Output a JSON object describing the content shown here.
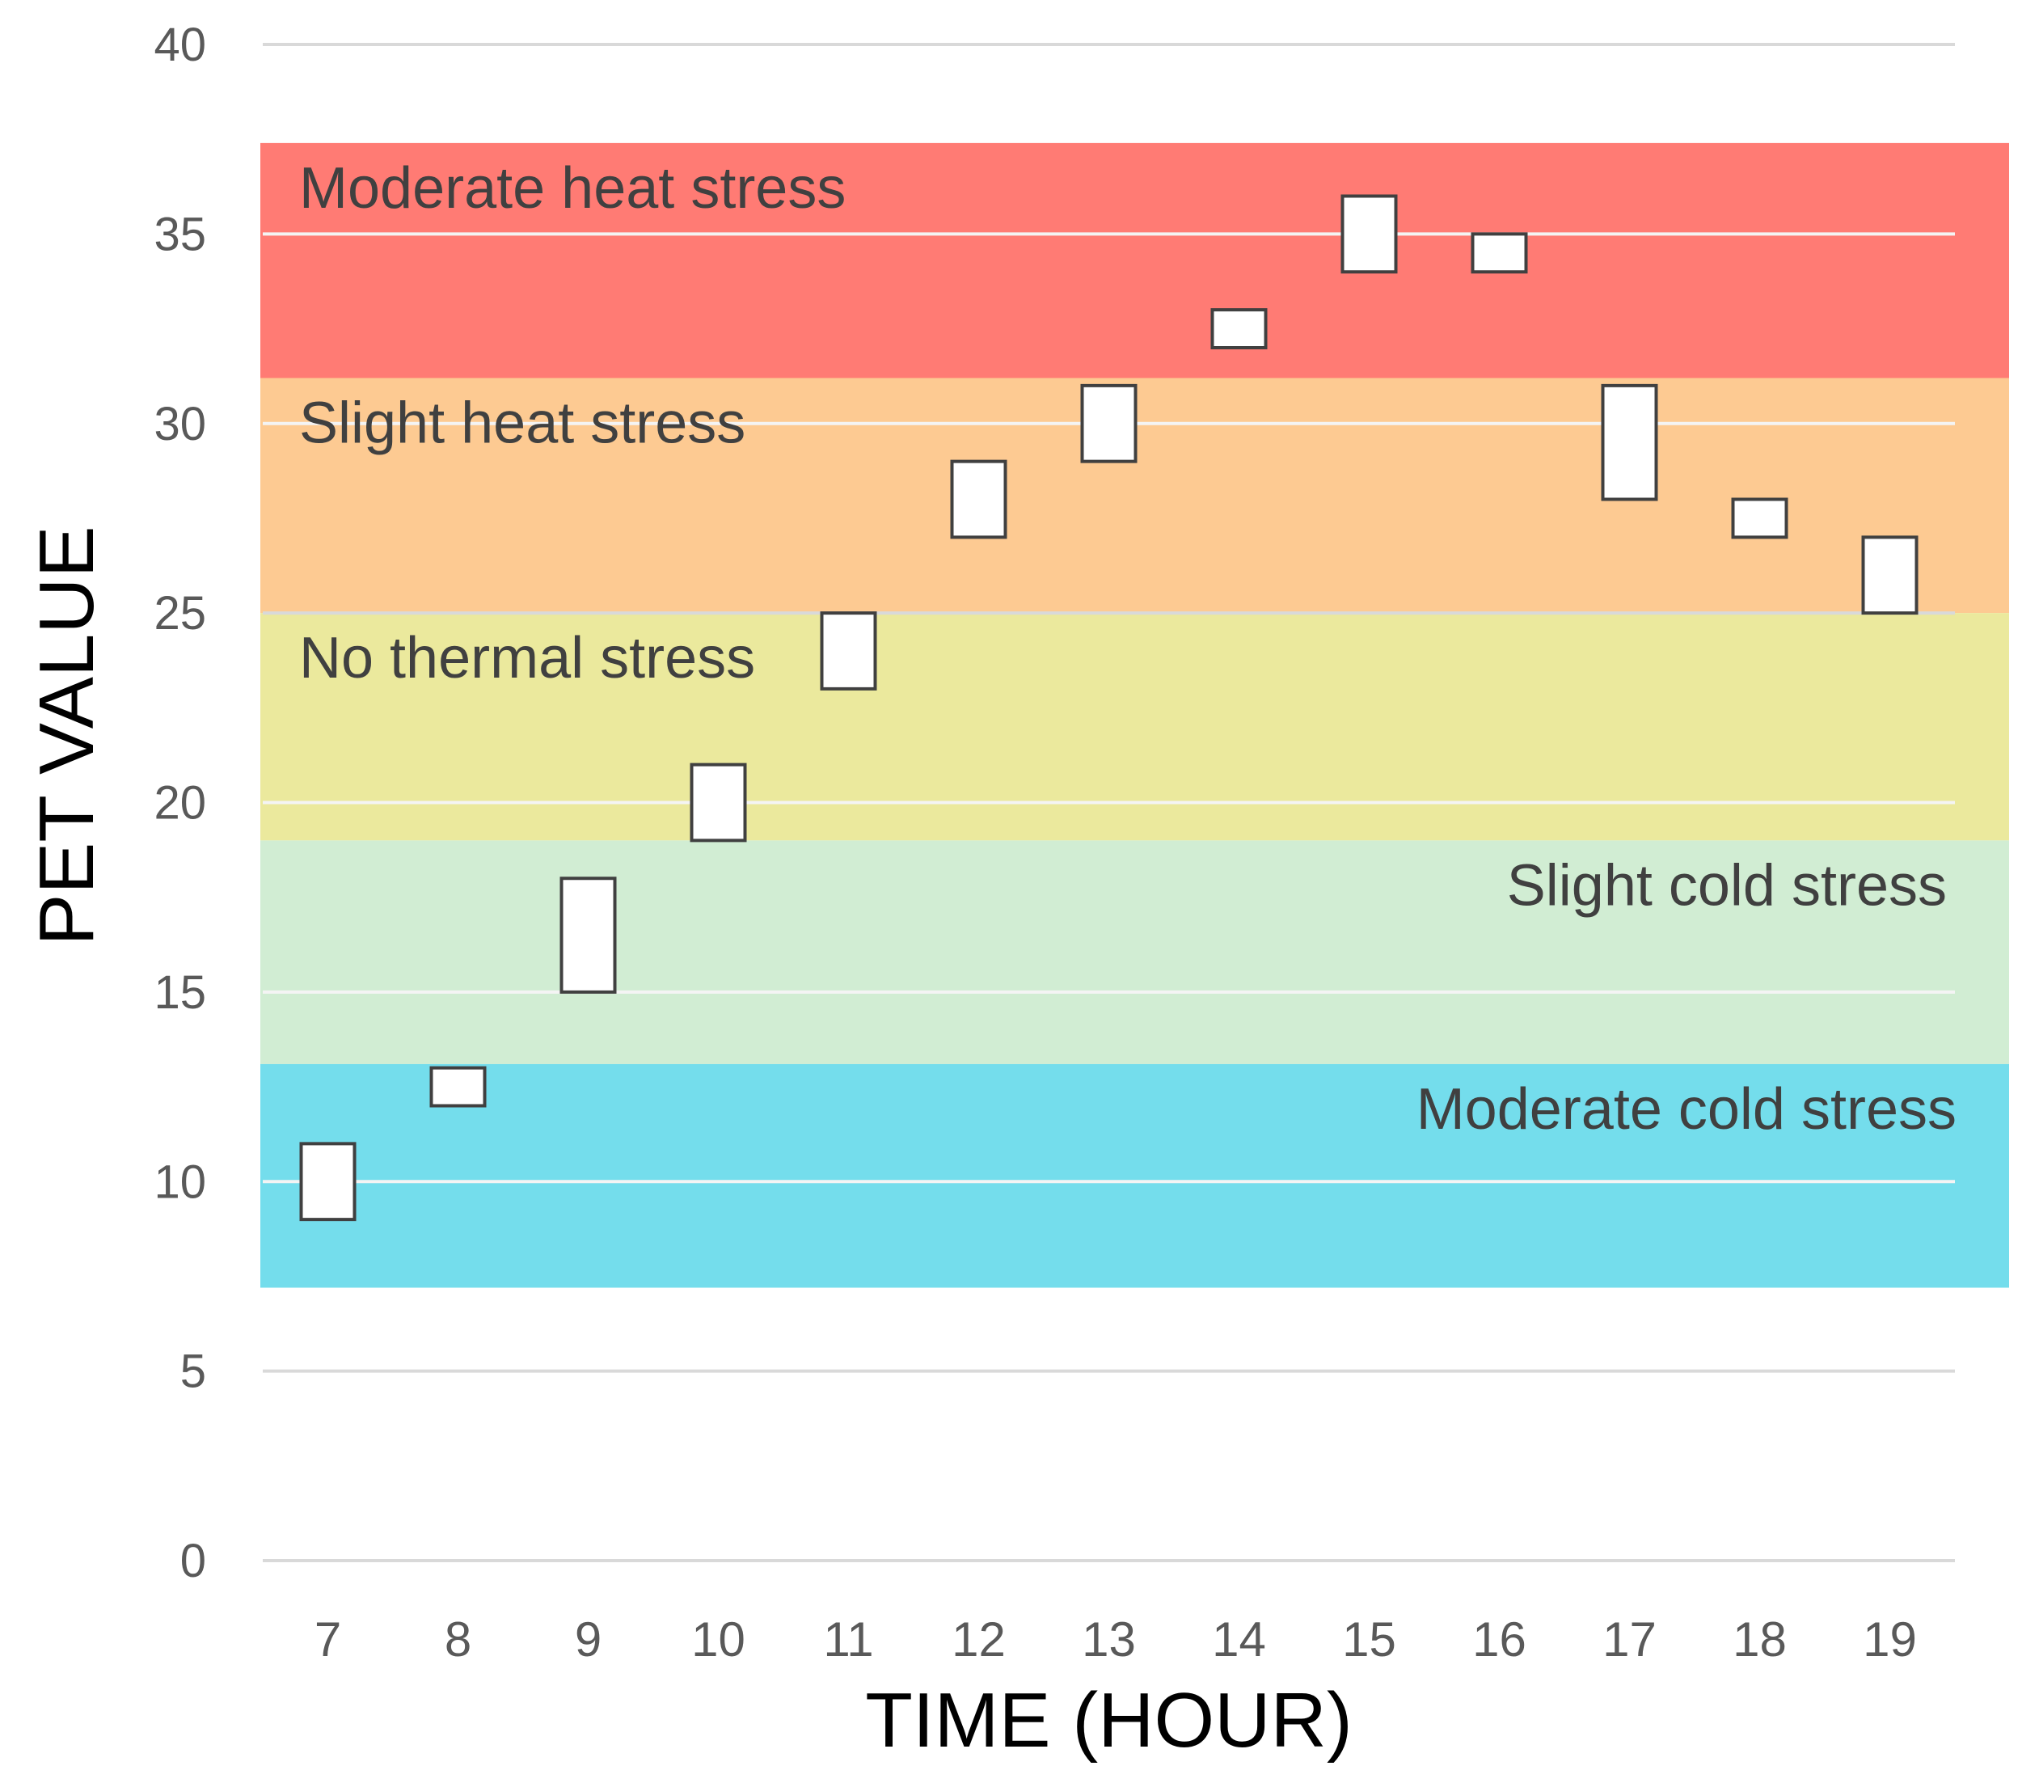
{
  "chart_data": {
    "type": "floating-bar",
    "title": "",
    "xlabel": "TIME (HOUR)",
    "ylabel": "PET VALUE",
    "ylim": [
      0,
      40
    ],
    "yticks": [
      "0",
      "5",
      "10",
      "15",
      "20",
      "25",
      "30",
      "35",
      "40"
    ],
    "categories": [
      "7",
      "8",
      "9",
      "10",
      "11",
      "12",
      "13",
      "14",
      "15",
      "16",
      "17",
      "18",
      "19"
    ],
    "ranges": [
      [
        9,
        11
      ],
      [
        12,
        13
      ],
      [
        15,
        18
      ],
      [
        19,
        21
      ],
      [
        23,
        25
      ],
      [
        27,
        29
      ],
      [
        29,
        31
      ],
      [
        32,
        33
      ],
      [
        34,
        36
      ],
      [
        34,
        35
      ],
      [
        28,
        31
      ],
      [
        27,
        28
      ],
      [
        25,
        27
      ]
    ],
    "bands": [
      {
        "label": "Moderate heat stress",
        "from": 31.2,
        "to": 37.4,
        "color": "#ff7b74",
        "align": "left"
      },
      {
        "label": "Slight heat stress",
        "from": 25.0,
        "to": 31.2,
        "color": "#fdca92",
        "align": "left"
      },
      {
        "label": "No thermal stress",
        "from": 19.0,
        "to": 25.0,
        "color": "#ebe99d",
        "align": "left"
      },
      {
        "label": "Slight cold stress",
        "from": 13.1,
        "to": 19.0,
        "color": "#d1edd3",
        "align": "right"
      },
      {
        "label": "Moderate cold stress",
        "from": 7.2,
        "to": 13.1,
        "color": "#74ddec",
        "align": "right"
      }
    ],
    "gridlines": true,
    "gridColor": "#d9d9d9",
    "boxFill": "#ffffff",
    "boxStroke": "#404040"
  }
}
